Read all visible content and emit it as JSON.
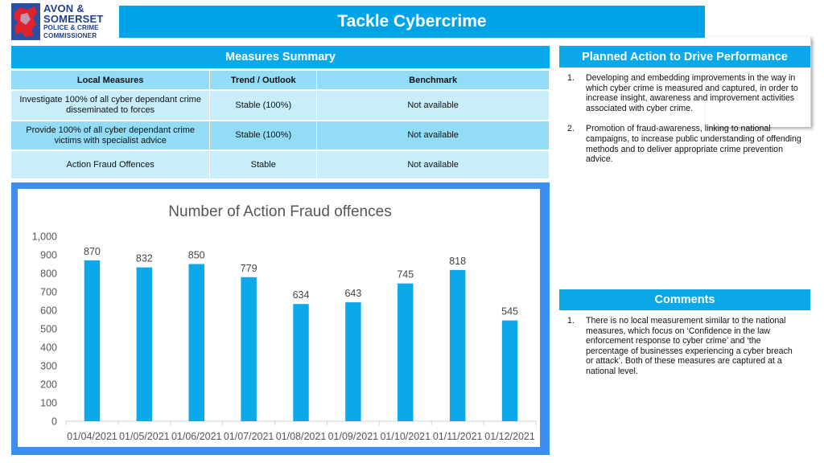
{
  "logo": {
    "line1": "AVON &",
    "line2": "SOMERSET",
    "line3": "POLICE & CRIME",
    "line4": "COMMISSIONER"
  },
  "header": {
    "title": "Tackle Cybercrime"
  },
  "measures": {
    "heading": "Measures Summary",
    "columns": [
      "Local Measures",
      "Trend / Outlook",
      "Benchmark"
    ],
    "rows": [
      {
        "measure": "Investigate 100% of all cyber dependant crime disseminated to forces",
        "trend": "Stable (100%)",
        "benchmark": "Not available"
      },
      {
        "measure": "Provide 100% of all cyber dependant crime victims with specialist advice",
        "trend": "Stable (100%)",
        "benchmark": "Not available"
      },
      {
        "measure": "Action Fraud Offences",
        "trend": "Stable",
        "benchmark": "Not available"
      }
    ]
  },
  "chart_data": {
    "type": "bar",
    "title": "Number of Action Fraud offences",
    "categories": [
      "01/04/2021",
      "01/05/2021",
      "01/06/2021",
      "01/07/2021",
      "01/08/2021",
      "01/09/2021",
      "01/10/2021",
      "01/11/2021",
      "01/12/2021"
    ],
    "values": [
      870,
      832,
      850,
      779,
      634,
      643,
      745,
      818,
      545
    ],
    "ylim": [
      0,
      1000
    ],
    "yticks": [
      "0",
      "100",
      "200",
      "300",
      "400",
      "500",
      "600",
      "700",
      "800",
      "900",
      "1,000"
    ],
    "grid": false,
    "bar_color": "#0ba9e9",
    "xlabel": "",
    "ylabel": ""
  },
  "planned": {
    "heading": "Planned Action to Drive Performance",
    "items": [
      {
        "num": "1.",
        "text": "Developing and embedding improvements in the way in which cyber crime is measured and captured, in order to increase insight, awareness and improvement activities associated with cyber crime."
      },
      {
        "num": "2.",
        "text": "Promotion of fraud-awareness, linking to national campaigns, to increase public understanding of offending methods and to deliver appropriate crime prevention advice."
      }
    ]
  },
  "comments": {
    "heading": "Comments",
    "items": [
      {
        "num": "1.",
        "text": "There is no local measurement similar to the national measures, which focus on ‘Confidence in the law enforcement response to cyber crime’ and ‘the percentage of businesses experiencing a cyber breach or attack’. Both of these measures are captured at a national level."
      }
    ]
  }
}
